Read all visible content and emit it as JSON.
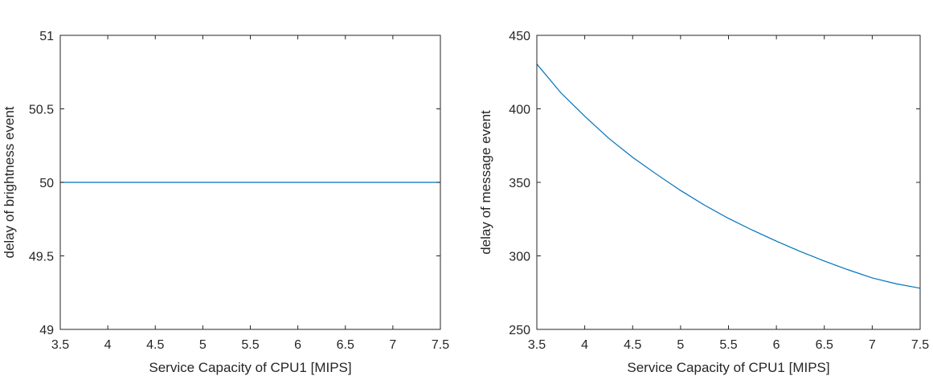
{
  "chart_data": [
    {
      "type": "line",
      "title": "",
      "xlabel": "Service Capacity of CPU1 [MIPS]",
      "ylabel": "delay of brightness event",
      "xlim": [
        3.5,
        7.5
      ],
      "ylim": [
        49,
        51
      ],
      "xticks": [
        "3.5",
        "4",
        "4.5",
        "5",
        "5.5",
        "6",
        "6.5",
        "7",
        "7.5"
      ],
      "yticks": [
        "49",
        "49.5",
        "50",
        "50.5",
        "51"
      ],
      "grid": false,
      "series": [
        {
          "color": "#0072BD",
          "x": [
            3.5,
            7.5
          ],
          "y": [
            50,
            50
          ]
        }
      ]
    },
    {
      "type": "line",
      "title": "",
      "xlabel": "Service Capacity of CPU1 [MIPS]",
      "ylabel": "delay of message event",
      "xlim": [
        3.5,
        7.5
      ],
      "ylim": [
        250,
        450
      ],
      "xticks": [
        "3.5",
        "4",
        "4.5",
        "5",
        "5.5",
        "6",
        "6.5",
        "7",
        "7.5"
      ],
      "yticks": [
        "250",
        "300",
        "350",
        "400",
        "450"
      ],
      "grid": false,
      "series": [
        {
          "color": "#0072BD",
          "x": [
            3.5,
            3.75,
            4,
            4.25,
            4.5,
            4.75,
            5,
            5.25,
            5.5,
            5.75,
            6,
            6.25,
            6.5,
            6.75,
            7,
            7.25,
            7.5
          ],
          "y": [
            430.5,
            411,
            395,
            380,
            367,
            355.5,
            344.5,
            334.5,
            325.5,
            317.5,
            310,
            303,
            296.5,
            290.5,
            285,
            281,
            278
          ]
        }
      ]
    }
  ]
}
